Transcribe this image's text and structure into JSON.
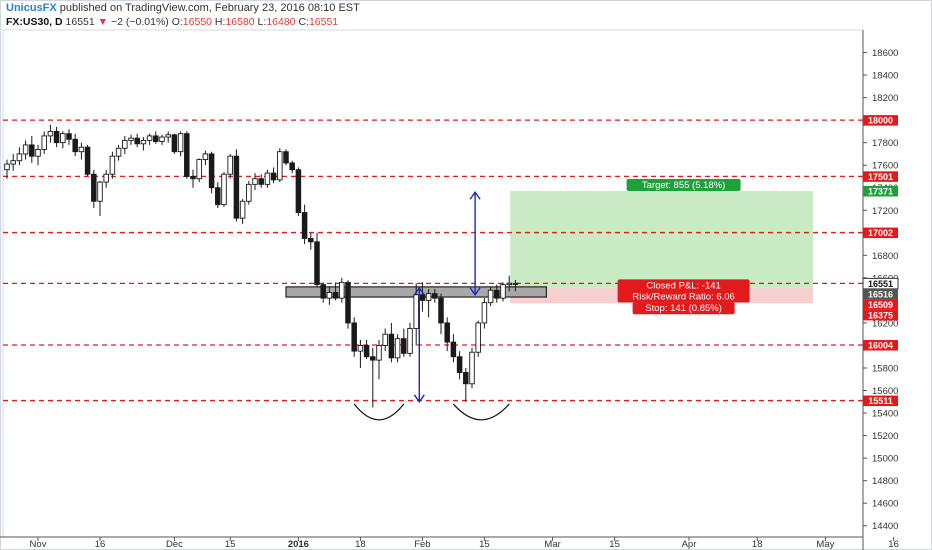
{
  "header": {
    "author": "UnicusFX",
    "publish_text": "published on TradingView.com, February 23, 2016 08:10 EST",
    "symbol": "FX:US30, D",
    "price": "16551",
    "change_arrow": "▼",
    "change": "−2 (−0.01%)",
    "o_label": "O:",
    "o_value": "16550",
    "h_label": "H:",
    "h_value": "16580",
    "l_label": "L:",
    "l_value": "16480",
    "c_label": "C:",
    "c_value": "16551"
  },
  "chart_data": {
    "type": "candlestick",
    "ylim": [
      14300,
      18800
    ],
    "y_ticks": [
      14400,
      14600,
      14800,
      15000,
      15200,
      15400,
      15600,
      15800,
      16000,
      16200,
      16400,
      16600,
      16800,
      17000,
      17200,
      17400,
      17600,
      17800,
      18000,
      18200,
      18400,
      18600
    ],
    "x_ticks": [
      {
        "label": "Nov",
        "bar": 5
      },
      {
        "label": "16",
        "bar": 15
      },
      {
        "label": "Dec",
        "bar": 27
      },
      {
        "label": "15",
        "bar": 36
      },
      {
        "label": "2016",
        "bar": 47
      },
      {
        "label": "18",
        "bar": 57
      },
      {
        "label": "Feb",
        "bar": 67
      },
      {
        "label": "15",
        "bar": 77
      },
      {
        "label": "Mar",
        "bar": 88
      },
      {
        "label": "15",
        "bar": 98
      },
      {
        "label": "Apr",
        "bar": 110
      },
      {
        "label": "18",
        "bar": 121
      },
      {
        "label": "May",
        "bar": 132
      },
      {
        "label": "16",
        "bar": 143
      }
    ],
    "candles": [
      {
        "o": 17560,
        "h": 17650,
        "l": 17480,
        "c": 17610
      },
      {
        "o": 17610,
        "h": 17700,
        "l": 17550,
        "c": 17640
      },
      {
        "o": 17640,
        "h": 17760,
        "l": 17600,
        "c": 17700
      },
      {
        "o": 17700,
        "h": 17820,
        "l": 17650,
        "c": 17780
      },
      {
        "o": 17780,
        "h": 17860,
        "l": 17620,
        "c": 17680
      },
      {
        "o": 17680,
        "h": 17780,
        "l": 17600,
        "c": 17740
      },
      {
        "o": 17740,
        "h": 17900,
        "l": 17700,
        "c": 17860
      },
      {
        "o": 17860,
        "h": 17960,
        "l": 17800,
        "c": 17900
      },
      {
        "o": 17900,
        "h": 17940,
        "l": 17760,
        "c": 17800
      },
      {
        "o": 17800,
        "h": 17900,
        "l": 17750,
        "c": 17880
      },
      {
        "o": 17880,
        "h": 17920,
        "l": 17780,
        "c": 17830
      },
      {
        "o": 17830,
        "h": 17880,
        "l": 17680,
        "c": 17720
      },
      {
        "o": 17720,
        "h": 17800,
        "l": 17650,
        "c": 17760
      },
      {
        "o": 17760,
        "h": 17780,
        "l": 17500,
        "c": 17520
      },
      {
        "o": 17520,
        "h": 17560,
        "l": 17220,
        "c": 17280
      },
      {
        "o": 17280,
        "h": 17460,
        "l": 17150,
        "c": 17450
      },
      {
        "o": 17450,
        "h": 17560,
        "l": 17400,
        "c": 17520
      },
      {
        "o": 17520,
        "h": 17720,
        "l": 17480,
        "c": 17680
      },
      {
        "o": 17680,
        "h": 17780,
        "l": 17640,
        "c": 17750
      },
      {
        "o": 17750,
        "h": 17860,
        "l": 17700,
        "c": 17820
      },
      {
        "o": 17820,
        "h": 17870,
        "l": 17780,
        "c": 17840
      },
      {
        "o": 17840,
        "h": 17880,
        "l": 17760,
        "c": 17790
      },
      {
        "o": 17790,
        "h": 17850,
        "l": 17730,
        "c": 17820
      },
      {
        "o": 17820,
        "h": 17880,
        "l": 17780,
        "c": 17860
      },
      {
        "o": 17860,
        "h": 17900,
        "l": 17790,
        "c": 17810
      },
      {
        "o": 17810,
        "h": 17870,
        "l": 17780,
        "c": 17850
      },
      {
        "o": 17850,
        "h": 17900,
        "l": 17800,
        "c": 17870
      },
      {
        "o": 17870,
        "h": 17880,
        "l": 17700,
        "c": 17720
      },
      {
        "o": 17720,
        "h": 17900,
        "l": 17680,
        "c": 17880
      },
      {
        "o": 17880,
        "h": 17900,
        "l": 17480,
        "c": 17500
      },
      {
        "o": 17500,
        "h": 17560,
        "l": 17400,
        "c": 17480
      },
      {
        "o": 17480,
        "h": 17660,
        "l": 17450,
        "c": 17650
      },
      {
        "o": 17650,
        "h": 17730,
        "l": 17600,
        "c": 17700
      },
      {
        "o": 17700,
        "h": 17720,
        "l": 17350,
        "c": 17400
      },
      {
        "o": 17400,
        "h": 17450,
        "l": 17220,
        "c": 17250
      },
      {
        "o": 17250,
        "h": 17540,
        "l": 17230,
        "c": 17520
      },
      {
        "o": 17520,
        "h": 17700,
        "l": 17480,
        "c": 17680
      },
      {
        "o": 17680,
        "h": 17740,
        "l": 17100,
        "c": 17130
      },
      {
        "o": 17130,
        "h": 17300,
        "l": 17080,
        "c": 17280
      },
      {
        "o": 17280,
        "h": 17460,
        "l": 17250,
        "c": 17430
      },
      {
        "o": 17430,
        "h": 17530,
        "l": 17380,
        "c": 17480
      },
      {
        "o": 17480,
        "h": 17520,
        "l": 17400,
        "c": 17430
      },
      {
        "o": 17430,
        "h": 17560,
        "l": 17400,
        "c": 17530
      },
      {
        "o": 17530,
        "h": 17580,
        "l": 17440,
        "c": 17470
      },
      {
        "o": 17470,
        "h": 17750,
        "l": 17450,
        "c": 17720
      },
      {
        "o": 17720,
        "h": 17740,
        "l": 17600,
        "c": 17620
      },
      {
        "o": 17620,
        "h": 17640,
        "l": 17530,
        "c": 17560
      },
      {
        "o": 17560,
        "h": 17580,
        "l": 17150,
        "c": 17180
      },
      {
        "o": 17180,
        "h": 17250,
        "l": 16900,
        "c": 16950
      },
      {
        "o": 16950,
        "h": 17000,
        "l": 16850,
        "c": 16920
      },
      {
        "o": 16920,
        "h": 17000,
        "l": 16520,
        "c": 16540
      },
      {
        "o": 16540,
        "h": 16560,
        "l": 16380,
        "c": 16420
      },
      {
        "o": 16420,
        "h": 16520,
        "l": 16360,
        "c": 16470
      },
      {
        "o": 16470,
        "h": 16560,
        "l": 16400,
        "c": 16420
      },
      {
        "o": 16420,
        "h": 16600,
        "l": 16380,
        "c": 16560
      },
      {
        "o": 16560,
        "h": 16580,
        "l": 16150,
        "c": 16200
      },
      {
        "o": 16200,
        "h": 16250,
        "l": 15900,
        "c": 15950
      },
      {
        "o": 15950,
        "h": 16050,
        "l": 15800,
        "c": 16000
      },
      {
        "o": 16000,
        "h": 16050,
        "l": 15880,
        "c": 15900
      },
      {
        "o": 15900,
        "h": 15980,
        "l": 15450,
        "c": 15870
      },
      {
        "o": 15870,
        "h": 16050,
        "l": 15700,
        "c": 16000
      },
      {
        "o": 16000,
        "h": 16150,
        "l": 15950,
        "c": 16100
      },
      {
        "o": 16100,
        "h": 16200,
        "l": 15850,
        "c": 15890
      },
      {
        "o": 15890,
        "h": 16100,
        "l": 15850,
        "c": 16060
      },
      {
        "o": 16060,
        "h": 16150,
        "l": 15900,
        "c": 15930
      },
      {
        "o": 15930,
        "h": 16200,
        "l": 15900,
        "c": 16150
      },
      {
        "o": 16150,
        "h": 16550,
        "l": 16000,
        "c": 16450
      },
      {
        "o": 16450,
        "h": 16560,
        "l": 16300,
        "c": 16400
      },
      {
        "o": 16400,
        "h": 16500,
        "l": 16250,
        "c": 16460
      },
      {
        "o": 16460,
        "h": 16500,
        "l": 16380,
        "c": 16420
      },
      {
        "o": 16420,
        "h": 16460,
        "l": 16100,
        "c": 16200
      },
      {
        "o": 16200,
        "h": 16250,
        "l": 15950,
        "c": 16030
      },
      {
        "o": 16030,
        "h": 16100,
        "l": 15850,
        "c": 15900
      },
      {
        "o": 15900,
        "h": 15950,
        "l": 15700,
        "c": 15760
      },
      {
        "o": 15760,
        "h": 15800,
        "l": 15500,
        "c": 15660
      },
      {
        "o": 15660,
        "h": 15980,
        "l": 15620,
        "c": 15940
      },
      {
        "o": 15940,
        "h": 16220,
        "l": 15900,
        "c": 16200
      },
      {
        "o": 16200,
        "h": 16420,
        "l": 16150,
        "c": 16380
      },
      {
        "o": 16380,
        "h": 16520,
        "l": 16350,
        "c": 16490
      },
      {
        "o": 16490,
        "h": 16540,
        "l": 16380,
        "c": 16420
      },
      {
        "o": 16420,
        "h": 16560,
        "l": 16390,
        "c": 16540
      },
      {
        "o": 16540,
        "h": 16620,
        "l": 16480,
        "c": 16552
      },
      {
        "o": 16550,
        "h": 16580,
        "l": 16480,
        "c": 16551
      }
    ],
    "horizontal_levels": [
      18000,
      17501,
      17002,
      16551,
      16004,
      15511
    ],
    "neckline": {
      "from_bar": 45,
      "to_bar": 87,
      "y_low": 16430,
      "y_high": 16520
    },
    "arrows": [
      {
        "bar": 66.5,
        "y_from": 15500,
        "y_to": 16510
      },
      {
        "bar": 75.5,
        "y_from": 16450,
        "y_to": 17360
      }
    ],
    "shoulders": [
      {
        "from_bar": 56,
        "to_bar": 64,
        "y_top": 15480,
        "y_bottom": 15340
      },
      {
        "from_bar": 72,
        "to_bar": 81,
        "y_top": 15480,
        "y_bottom": 15340
      }
    ],
    "position": {
      "from_bar": 81,
      "to_bar": 130,
      "entry": 16516,
      "target": 17371,
      "stop": 16375,
      "target_label": "Target: 855 (5.18%)",
      "pnl_label": "Closed P&L: -141",
      "rr_label": "Risk/Reward Ratio: 6.06",
      "stop_label": "Stop: 141 (0.85%)"
    },
    "price_tags": [
      {
        "value": 18000,
        "label": "18000",
        "color": "#e31a1c"
      },
      {
        "value": 17501,
        "label": "17501",
        "color": "#e31a1c"
      },
      {
        "value": 17371,
        "label": "17371",
        "color": "#1fa13a"
      },
      {
        "value": 17002,
        "label": "17002",
        "color": "#e31a1c"
      },
      {
        "value": 16551,
        "label": "16551",
        "color": "#ffffff"
      },
      {
        "value": 16516,
        "label": "16516",
        "color": "#555555"
      },
      {
        "value": 16509,
        "label": "16509",
        "color": "#e31a1c"
      },
      {
        "value": 16375,
        "label": "16375",
        "color": "#e31a1c"
      },
      {
        "value": 16004,
        "label": "16004",
        "color": "#e31a1c"
      },
      {
        "value": 15511,
        "label": "15511",
        "color": "#e31a1c"
      }
    ],
    "colors": {
      "candle": "#1a1a1a",
      "level": "#e31a1c",
      "target_zone": "#c8ebc4",
      "stop_zone": "#f8cfd0",
      "arrow": "#2028b8",
      "target_tag": "#1fa13a",
      "stop_tag": "#e31a1c",
      "neckline_fill": "#a8a8a8"
    }
  }
}
